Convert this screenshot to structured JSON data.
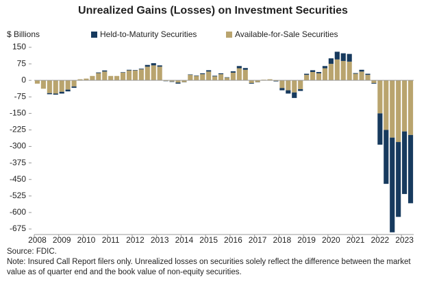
{
  "chart_data": {
    "type": "stacked-bar",
    "title": "Unrealized Gains (Losses) on Investment Securities",
    "y_label": "$ Billions",
    "categories": [
      "2008",
      null,
      null,
      null,
      "2009",
      null,
      null,
      null,
      "2010",
      null,
      null,
      null,
      "2011",
      null,
      null,
      null,
      "2012",
      null,
      null,
      null,
      "2013",
      null,
      null,
      null,
      "2014",
      null,
      null,
      null,
      "2015",
      null,
      null,
      null,
      "2016",
      null,
      null,
      null,
      "2017",
      null,
      null,
      null,
      "2018",
      null,
      null,
      null,
      "2019",
      null,
      null,
      null,
      "2020",
      null,
      null,
      null,
      "2021",
      null,
      null,
      null,
      "2022",
      null,
      null,
      null,
      "2023",
      null
    ],
    "series": [
      {
        "name": "Available-for-Sale Securities",
        "color": "#b9a46e",
        "values": [
          -15,
          -38,
          -58,
          -60,
          -52,
          -42,
          -28,
          5,
          8,
          20,
          33,
          40,
          20,
          20,
          35,
          45,
          45,
          50,
          62,
          68,
          62,
          -3,
          -5,
          -10,
          -8,
          25,
          20,
          28,
          40,
          18,
          28,
          12,
          35,
          55,
          48,
          -12,
          -8,
          3,
          5,
          -3,
          -35,
          -45,
          -55,
          -40,
          25,
          38,
          32,
          55,
          75,
          95,
          88,
          85,
          30,
          40,
          25,
          -12,
          -150,
          -225,
          -260,
          -280,
          -232,
          -248
        ]
      },
      {
        "name": "Held-to-Maturity Securities",
        "color": "#173a5e",
        "values": [
          0,
          0,
          -5,
          -5,
          -8,
          -8,
          -6,
          0,
          0,
          0,
          3,
          5,
          0,
          0,
          2,
          3,
          2,
          3,
          8,
          10,
          6,
          -1,
          -2,
          -5,
          -1,
          2,
          2,
          4,
          6,
          3,
          4,
          2,
          6,
          10,
          8,
          -3,
          -1,
          0,
          0,
          -2,
          -10,
          -15,
          -25,
          -8,
          5,
          8,
          6,
          10,
          25,
          35,
          35,
          35,
          3,
          8,
          5,
          -3,
          -142,
          -245,
          -430,
          -340,
          -284,
          -310
        ]
      }
    ],
    "legend_order": [
      1,
      0
    ],
    "ylim": [
      -700,
      160
    ],
    "yticks": [
      150,
      75,
      0,
      -75,
      -150,
      -225,
      -300,
      -375,
      -450,
      -525,
      -600,
      -675
    ],
    "source": "Source: FDIC.",
    "note": "Note: Insured Call Report filers only. Unrealized losses on securities solely reflect the difference between the market value as of quarter end and the book value of non-equity securities."
  }
}
